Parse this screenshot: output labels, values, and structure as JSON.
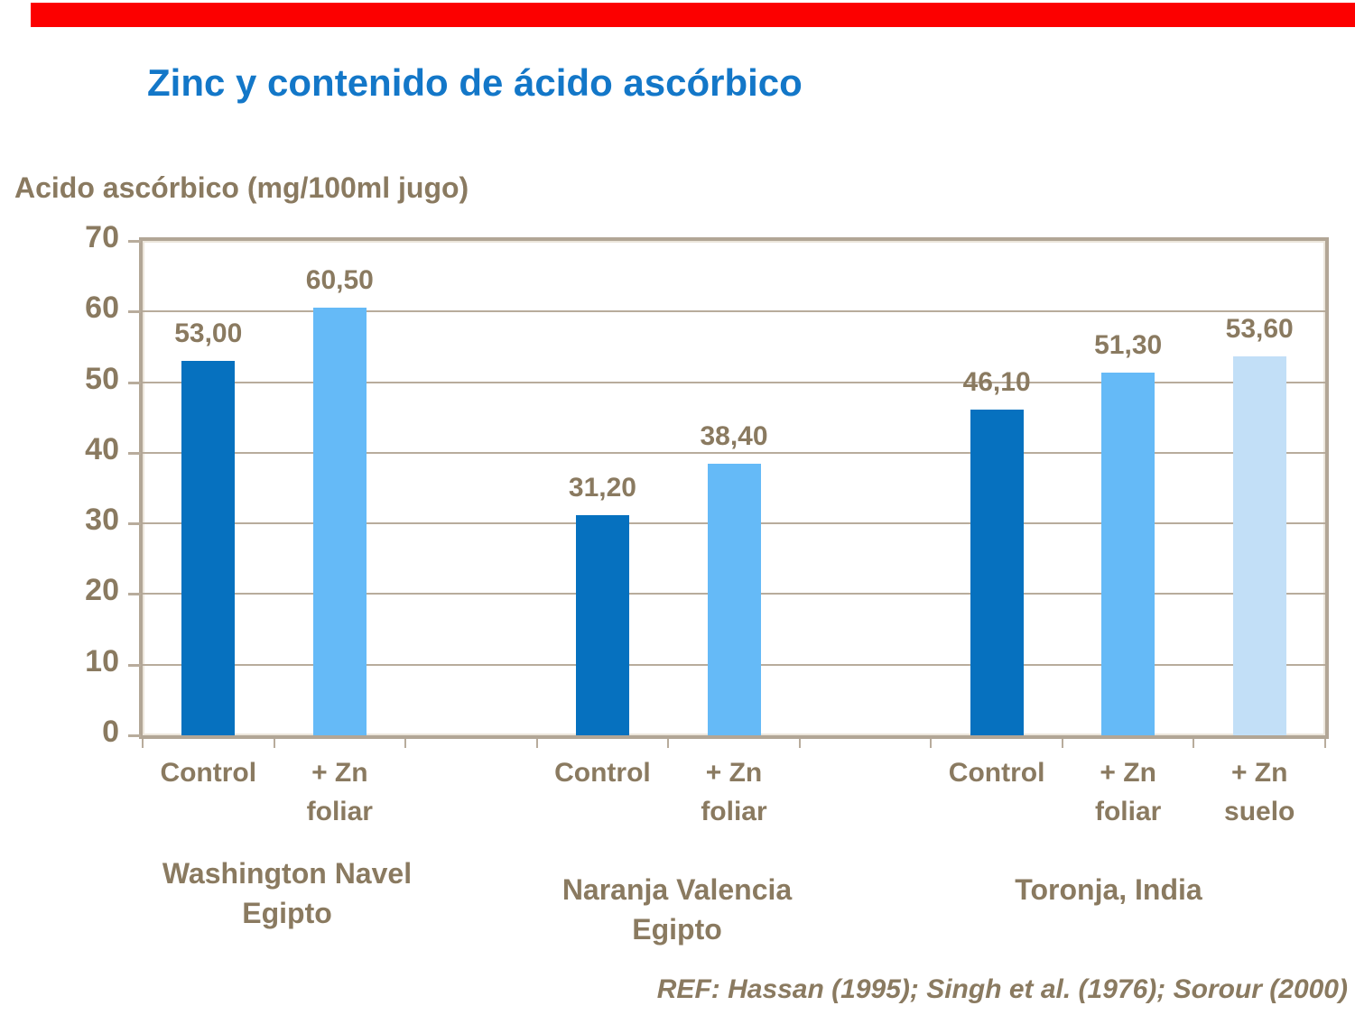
{
  "slide": {
    "title": "Zinc y contenido de ácido ascórbico",
    "reference": "REF: Hassan (1995); Singh et al. (1976); Sorour (2000)"
  },
  "colors": {
    "top_accent_bar": "#fc0000",
    "title_blue": "#1377c8",
    "text_brown": "#8a7a60",
    "bar_dark_blue": "#0671bf",
    "bar_light_blue": "#65baf7",
    "bar_pale_blue": "#c2dff7",
    "chart_frame_tan": "#b2a696",
    "gridline_tan": "#b8ac9c"
  },
  "chart_data": {
    "type": "bar",
    "title": "Zinc y contenido de ácido ascórbico",
    "ylabel": "Acido ascórbico (mg/100ml jugo)",
    "xlabel": "",
    "ylim": [
      0,
      70
    ],
    "yticks": [
      0,
      10,
      20,
      30,
      40,
      50,
      60,
      70
    ],
    "grid": true,
    "legend": false,
    "decimal_style": "comma",
    "groups": [
      {
        "label": "Washington Navel\nEgipto",
        "bars": [
          {
            "category": "Control",
            "value": 53.0,
            "value_label": "53,00",
            "color_key": "bar_dark_blue"
          },
          {
            "category": "+ Zn\nfoliar",
            "value": 60.5,
            "value_label": "60,50",
            "color_key": "bar_light_blue"
          }
        ]
      },
      {
        "label": "Naranja Valencia\nEgipto",
        "bars": [
          {
            "category": "Control",
            "value": 31.2,
            "value_label": "31,20",
            "color_key": "bar_dark_blue"
          },
          {
            "category": "+ Zn\nfoliar",
            "value": 38.4,
            "value_label": "38,40",
            "color_key": "bar_light_blue"
          }
        ]
      },
      {
        "label": "Toronja, India",
        "bars": [
          {
            "category": "Control",
            "value": 46.1,
            "value_label": "46,10",
            "color_key": "bar_dark_blue"
          },
          {
            "category": "+ Zn\nfoliar",
            "value": 51.3,
            "value_label": "51,30",
            "color_key": "bar_light_blue"
          },
          {
            "category": "+ Zn\nsuelo",
            "value": 53.6,
            "value_label": "53,60",
            "color_key": "bar_pale_blue"
          }
        ]
      }
    ]
  }
}
